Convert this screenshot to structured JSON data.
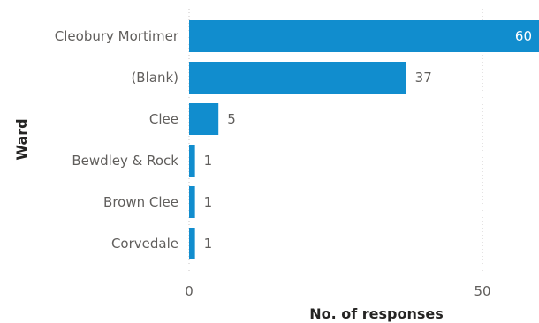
{
  "chart_data": {
    "type": "bar",
    "orientation": "horizontal",
    "categories": [
      "Cleobury Mortimer",
      "(Blank)",
      "Clee",
      "Bewdley & Rock",
      "Brown Clee",
      "Corvedale"
    ],
    "values": [
      60,
      37,
      5,
      1,
      1,
      1
    ],
    "data_labels": [
      "60",
      "37",
      "5",
      "1",
      "1",
      "1"
    ],
    "xlabel": "No. of responses",
    "ylabel": "Ward",
    "xticks": [
      0,
      50
    ],
    "xtick_labels": [
      "0",
      "50"
    ],
    "xlim": [
      0,
      60
    ],
    "grid": true,
    "legend": "none",
    "colors": {
      "bar": "#118dce"
    }
  }
}
